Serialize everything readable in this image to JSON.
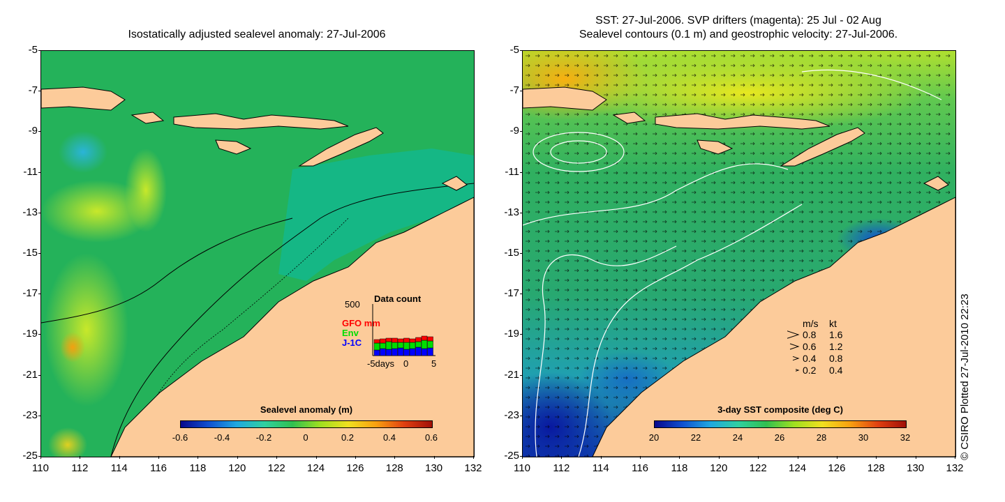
{
  "left_panel": {
    "title": "Isostatically adjusted sealevel anomaly: 27-Jul-2006",
    "y_ticks": [
      "-5",
      "-7",
      "-9",
      "-11",
      "-13",
      "-15",
      "-17",
      "-19",
      "-21",
      "-23",
      "-25"
    ],
    "x_ticks": [
      "110",
      "112",
      "114",
      "116",
      "118",
      "120",
      "122",
      "124",
      "126",
      "128",
      "130",
      "132"
    ],
    "colorbar": {
      "title": "Sealevel anomaly (m)",
      "labels": [
        "-0.6",
        "-0.4",
        "-0.2",
        "0",
        "0.2",
        "0.4",
        "0.6"
      ]
    },
    "data_count": {
      "title": "Data count",
      "y_max": "500",
      "legend": [
        {
          "name": "GFO mm",
          "color": "#ff0000"
        },
        {
          "name": "Env",
          "color": "#00dd00"
        },
        {
          "name": "J-1C",
          "color": "#0000ff"
        }
      ],
      "x_ticks": [
        "-5days",
        "0",
        "5"
      ]
    }
  },
  "right_panel": {
    "title_line1": "SST: 27-Jul-2006. SVP drifters (magenta): 25 Jul - 02 Aug",
    "title_line2": "Sealevel contours (0.1 m) and geostrophic velocity: 27-Jul-2006.",
    "y_ticks": [
      "-5",
      "-7",
      "-9",
      "-11",
      "-13",
      "-15",
      "-17",
      "-19",
      "-21",
      "-23",
      "-25"
    ],
    "x_ticks": [
      "110",
      "112",
      "114",
      "116",
      "118",
      "120",
      "122",
      "124",
      "126",
      "128",
      "130",
      "132"
    ],
    "colorbar": {
      "title": "3-day SST composite (deg C)",
      "labels": [
        "20",
        "22",
        "24",
        "26",
        "28",
        "30",
        "32"
      ]
    },
    "velocity_legend": {
      "header_ms": "m/s",
      "header_kt": "kt",
      "rows": [
        {
          "ms": "0.8",
          "kt": "1.6"
        },
        {
          "ms": "0.6",
          "kt": "1.2"
        },
        {
          "ms": "0.4",
          "kt": "0.8"
        },
        {
          "ms": "0.2",
          "kt": "0.4"
        }
      ]
    }
  },
  "credit": "© CSIRO Plotted 27-Jul-2010 22:23",
  "colors": {
    "land": "#fccb9a",
    "ocean_green": "#22b35a",
    "ocean_teal": "#10b890"
  }
}
